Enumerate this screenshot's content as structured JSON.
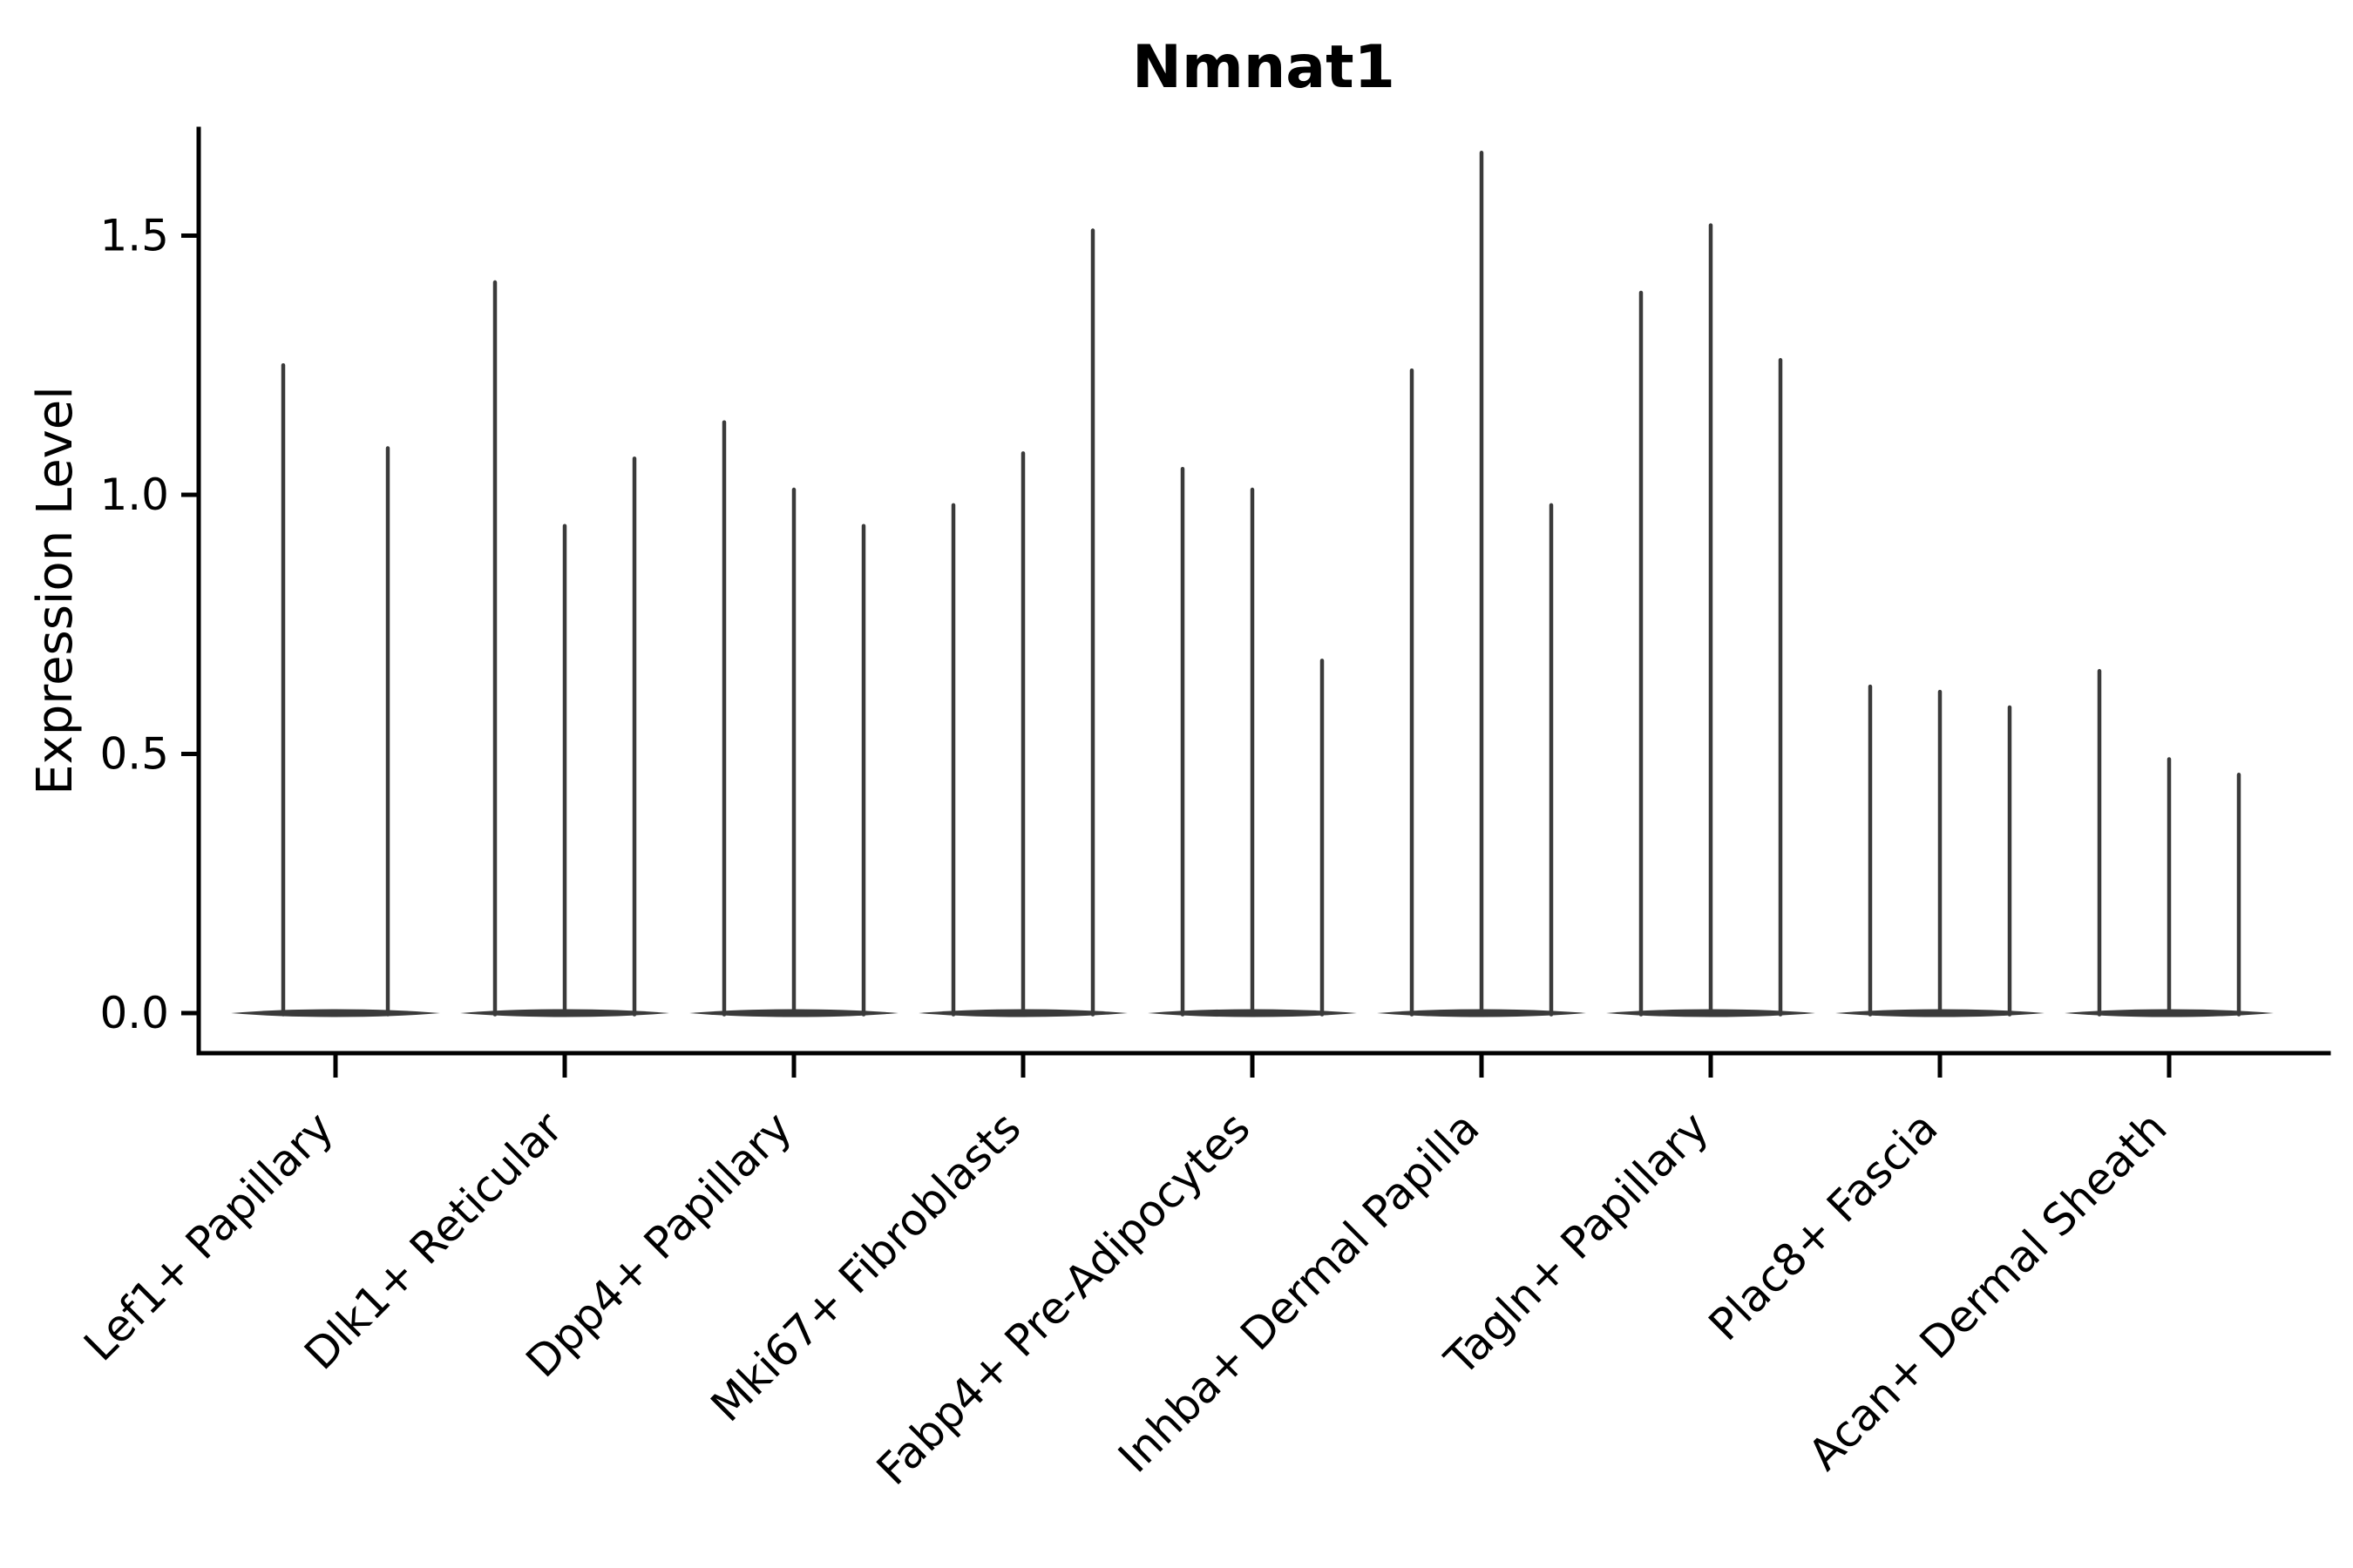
{
  "chart_data": {
    "type": "violin",
    "title": "Nmnat1",
    "ylabel": "Expression Level",
    "xlabel": "",
    "yticks": [
      "0.0",
      "0.5",
      "1.0",
      "1.5"
    ],
    "ylim": [
      -0.08,
      1.71
    ],
    "grid": false,
    "legend": "none",
    "xtick_rotation": 45,
    "categories": [
      "Lef1+ Papillary",
      "Dlk1+ Reticular",
      "Dpp4+ Papillary",
      "Mki67+ Fibroblasts",
      "Fabp4+ Pre-Adipocytes",
      "Inhba+ Dermal Papilla",
      "Tagln+ Papillary",
      "Plac8+ Fascia",
      "Acan+ Dermal Sheath"
    ],
    "groups": [
      {
        "category": "Lef1+ Papillary",
        "violin_maxima": [
          1.25,
          1.09
        ]
      },
      {
        "category": "Dlk1+ Reticular",
        "violin_maxima": [
          1.41,
          0.94,
          1.07
        ]
      },
      {
        "category": "Dpp4+ Papillary",
        "violin_maxima": [
          1.14,
          1.01,
          0.94
        ]
      },
      {
        "category": "Mki67+ Fibroblasts",
        "violin_maxima": [
          0.98,
          1.08,
          1.51
        ]
      },
      {
        "category": "Fabp4+ Pre-Adipocytes",
        "violin_maxima": [
          1.05,
          1.01,
          0.68
        ]
      },
      {
        "category": "Inhba+ Dermal Papilla",
        "violin_maxima": [
          1.24,
          1.66,
          0.98
        ]
      },
      {
        "category": "Tagln+ Papillary",
        "violin_maxima": [
          1.39,
          1.52,
          1.26
        ]
      },
      {
        "category": "Plac8+ Fascia",
        "violin_maxima": [
          0.63,
          0.62,
          0.59
        ]
      },
      {
        "category": "Acan+ Dermal Sheath",
        "violin_maxima": [
          0.66,
          0.49,
          0.46
        ]
      }
    ],
    "colors": {
      "violin": "#3a3a3a",
      "axis": "#000000",
      "text": "#000000",
      "background": "#ffffff"
    }
  }
}
